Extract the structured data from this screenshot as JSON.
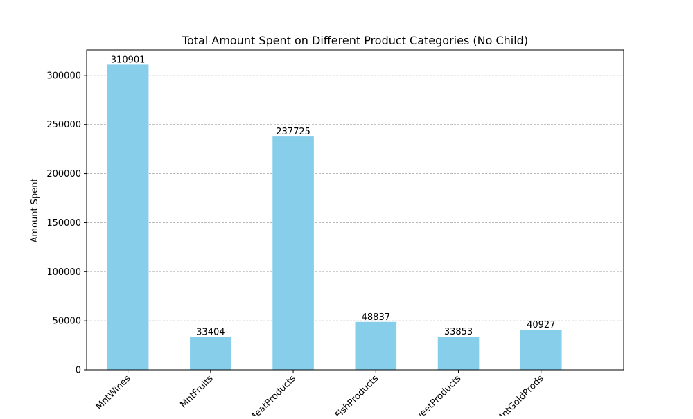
{
  "chart_data": {
    "type": "bar",
    "title": "Total Amount Spent on Different Product Categories (No Child)",
    "xlabel": "",
    "ylabel": "Amount Spent",
    "categories": [
      "MntWines",
      "MntFruits",
      "MntMeatProducts",
      "MntFishProducts",
      "MntSweetProducts",
      "MntGoldProds"
    ],
    "values": [
      310901,
      33404,
      237725,
      48837,
      33853,
      40927
    ],
    "ylim": [
      0,
      326000
    ],
    "yticks": [
      0,
      50000,
      100000,
      150000,
      200000,
      250000,
      300000
    ],
    "grid": {
      "axis": "y",
      "style": "dashed"
    },
    "bar_color": "#87ceeb",
    "show_value_labels": true,
    "xtick_rotation": 45
  }
}
